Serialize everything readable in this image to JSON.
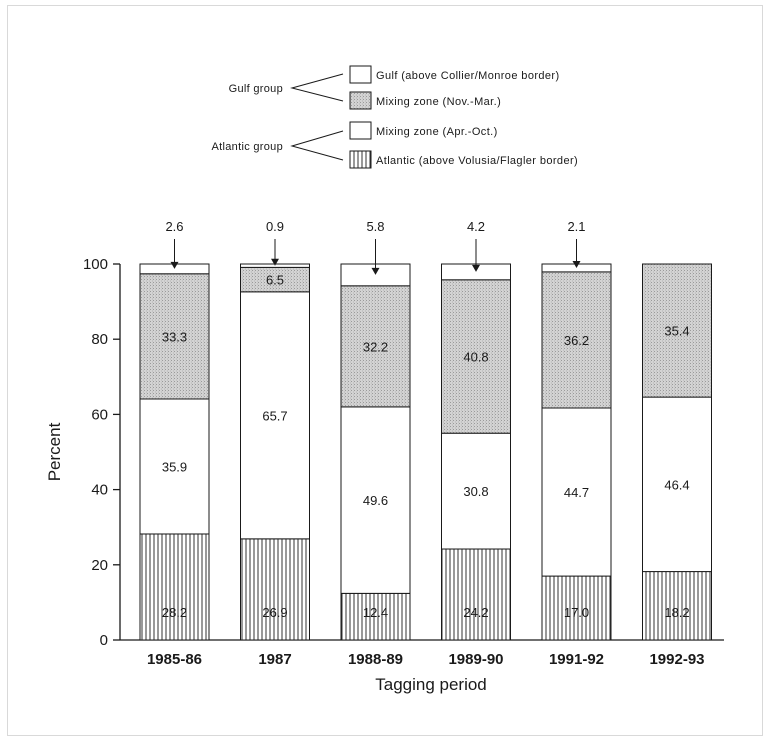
{
  "legend": {
    "groups": [
      {
        "label": "Gulf group",
        "entries": [
          {
            "label": "Gulf (above Collier/Monroe border)",
            "fill": "white"
          },
          {
            "label": "Mixing zone (Nov.-Mar.)",
            "fill": "stipple"
          }
        ]
      },
      {
        "label": "Atlantic group",
        "entries": [
          {
            "label": "Mixing zone (Apr.-Oct.)",
            "fill": "white"
          },
          {
            "label": "Atlantic (above Volusia/Flagler border)",
            "fill": "vertical-lines"
          }
        ]
      }
    ]
  },
  "chart_data": {
    "type": "bar",
    "stacked": true,
    "xlabel": "Tagging period",
    "ylabel": "Percent",
    "ylim": [
      0,
      100
    ],
    "yticks": [
      "0",
      "20",
      "40",
      "60",
      "80",
      "100"
    ],
    "categories": [
      "1985-86",
      "1987",
      "1988-89",
      "1989-90",
      "1991-92",
      "1992-93"
    ],
    "series": [
      {
        "name": "Atlantic (above Volusia/Flagler border)",
        "fill": "vertical-lines",
        "values": [
          28.2,
          26.9,
          12.4,
          24.2,
          17.0,
          18.2
        ],
        "labels": [
          "28.2",
          "26.9",
          "12.4",
          "24.2",
          "17.0",
          "18.2"
        ]
      },
      {
        "name": "Mixing zone (Apr.-Oct.)",
        "fill": "white",
        "values": [
          35.9,
          65.7,
          49.6,
          30.8,
          44.7,
          46.4
        ],
        "labels": [
          "35.9",
          "65.7",
          "49.6",
          "30.8",
          "44.7",
          "46.4"
        ]
      },
      {
        "name": "Mixing zone (Nov.-Mar.)",
        "fill": "stipple",
        "values": [
          33.3,
          6.5,
          32.2,
          40.8,
          36.2,
          35.4
        ],
        "labels": [
          "33.3",
          "6.5",
          "32.2",
          "40.8",
          "36.2",
          "35.4"
        ]
      },
      {
        "name": "Gulf (above Collier/Monroe border)",
        "fill": "white",
        "values": [
          2.6,
          0.9,
          5.8,
          4.2,
          2.1,
          0
        ],
        "labels": [
          "2.6",
          "0.9",
          "5.8",
          "4.2",
          "2.1",
          ""
        ]
      }
    ],
    "colors": {
      "stipple": "#cfcfcf",
      "lines": "#333333",
      "axis": "#1a1a1a"
    }
  }
}
